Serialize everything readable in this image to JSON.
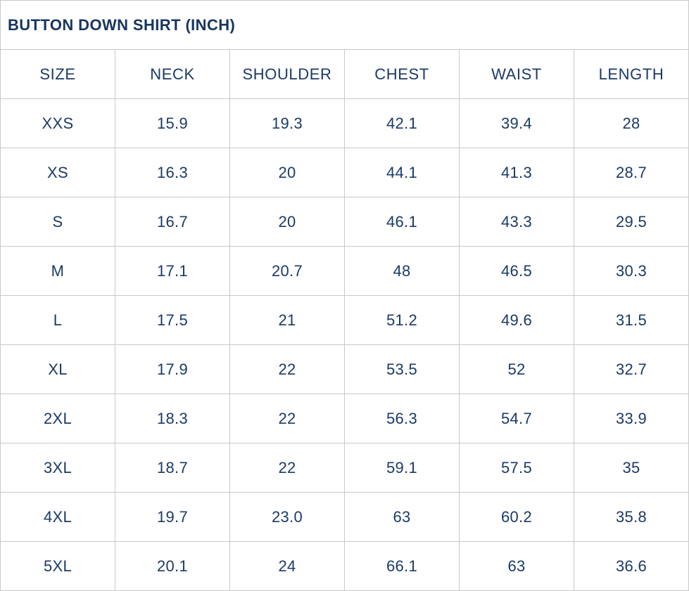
{
  "title": "BUTTON DOWN SHIRT (INCH)",
  "colors": {
    "text": "#1b3a66",
    "title_text": "#17355f",
    "border": "#c9c9c9",
    "background": "#ffffff"
  },
  "table": {
    "headers": [
      "SIZE",
      "NECK",
      "SHOULDER",
      "CHEST",
      "WAIST",
      "LENGTH"
    ],
    "rows": [
      [
        "XXS",
        "15.9",
        "19.3",
        "42.1",
        "39.4",
        "28"
      ],
      [
        "XS",
        "16.3",
        "20",
        "44.1",
        "41.3",
        "28.7"
      ],
      [
        "S",
        "16.7",
        "20",
        "46.1",
        "43.3",
        "29.5"
      ],
      [
        "M",
        "17.1",
        "20.7",
        "48",
        "46.5",
        "30.3"
      ],
      [
        "L",
        "17.5",
        "21",
        "51.2",
        "49.6",
        "31.5"
      ],
      [
        "XL",
        "17.9",
        "22",
        "53.5",
        "52",
        "32.7"
      ],
      [
        "2XL",
        "18.3",
        "22",
        "56.3",
        "54.7",
        "33.9"
      ],
      [
        "3XL",
        "18.7",
        "22",
        "59.1",
        "57.5",
        "35"
      ],
      [
        "4XL",
        "19.7",
        "23.0",
        "63",
        "60.2",
        "35.8"
      ],
      [
        "5XL",
        "20.1",
        "24",
        "66.1",
        "63",
        "36.6"
      ]
    ]
  },
  "chart_data": {
    "type": "table",
    "title": "BUTTON DOWN SHIRT (INCH)",
    "unit": "inch",
    "columns": [
      "SIZE",
      "NECK",
      "SHOULDER",
      "CHEST",
      "WAIST",
      "LENGTH"
    ],
    "categories": [
      "XXS",
      "XS",
      "S",
      "M",
      "L",
      "XL",
      "2XL",
      "3XL",
      "4XL",
      "5XL"
    ],
    "series": [
      {
        "name": "NECK",
        "values": [
          15.9,
          16.3,
          16.7,
          17.1,
          17.5,
          17.9,
          18.3,
          18.7,
          19.7,
          20.1
        ]
      },
      {
        "name": "SHOULDER",
        "values": [
          19.3,
          20,
          20,
          20.7,
          21,
          22,
          22,
          22,
          23.0,
          24
        ]
      },
      {
        "name": "CHEST",
        "values": [
          42.1,
          44.1,
          46.1,
          48,
          51.2,
          53.5,
          56.3,
          59.1,
          63,
          66.1
        ]
      },
      {
        "name": "WAIST",
        "values": [
          39.4,
          41.3,
          43.3,
          46.5,
          49.6,
          52,
          54.7,
          57.5,
          60.2,
          63
        ]
      },
      {
        "name": "LENGTH",
        "values": [
          28,
          28.7,
          29.5,
          30.3,
          31.5,
          32.7,
          33.9,
          35,
          35.8,
          36.6
        ]
      }
    ]
  }
}
